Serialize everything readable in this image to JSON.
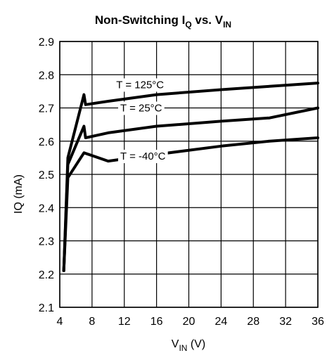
{
  "chart_data": {
    "type": "line",
    "title": {
      "main": "Non-Switching I",
      "sub1": "Q",
      "mid": " vs. V",
      "sub2": "IN"
    },
    "xlabel": {
      "main": "V",
      "sub": "IN",
      "unit": " (V)"
    },
    "ylabel": "IQ (mA)",
    "xlim": [
      4,
      36
    ],
    "ylim": [
      2.1,
      2.9
    ],
    "xticks": [
      4,
      8,
      12,
      16,
      20,
      24,
      28,
      32,
      36
    ],
    "yticks": [
      2.1,
      2.2,
      2.3,
      2.4,
      2.5,
      2.6,
      2.7,
      2.8,
      2.9
    ],
    "grid": true,
    "series": [
      {
        "name": "T = 125°C",
        "x": [
          4.5,
          5,
          7,
          7.2,
          10,
          16,
          24,
          30,
          36
        ],
        "y": [
          2.21,
          2.55,
          2.74,
          2.71,
          2.72,
          2.74,
          2.755,
          2.765,
          2.775
        ],
        "label_at": [
          11,
          2.77
        ]
      },
      {
        "name": "T = 25°C",
        "x": [
          4.5,
          5,
          7,
          7.2,
          10,
          16,
          24,
          30,
          36
        ],
        "y": [
          2.21,
          2.53,
          2.645,
          2.61,
          2.625,
          2.645,
          2.66,
          2.67,
          2.7
        ],
        "label_at": [
          11.5,
          2.7
        ]
      },
      {
        "name": "T = -40°C",
        "x": [
          4.5,
          5,
          7,
          10,
          16,
          24,
          30,
          36
        ],
        "y": [
          2.21,
          2.49,
          2.565,
          2.54,
          2.56,
          2.585,
          2.6,
          2.61
        ],
        "label_at": [
          11.5,
          2.555
        ]
      }
    ]
  }
}
